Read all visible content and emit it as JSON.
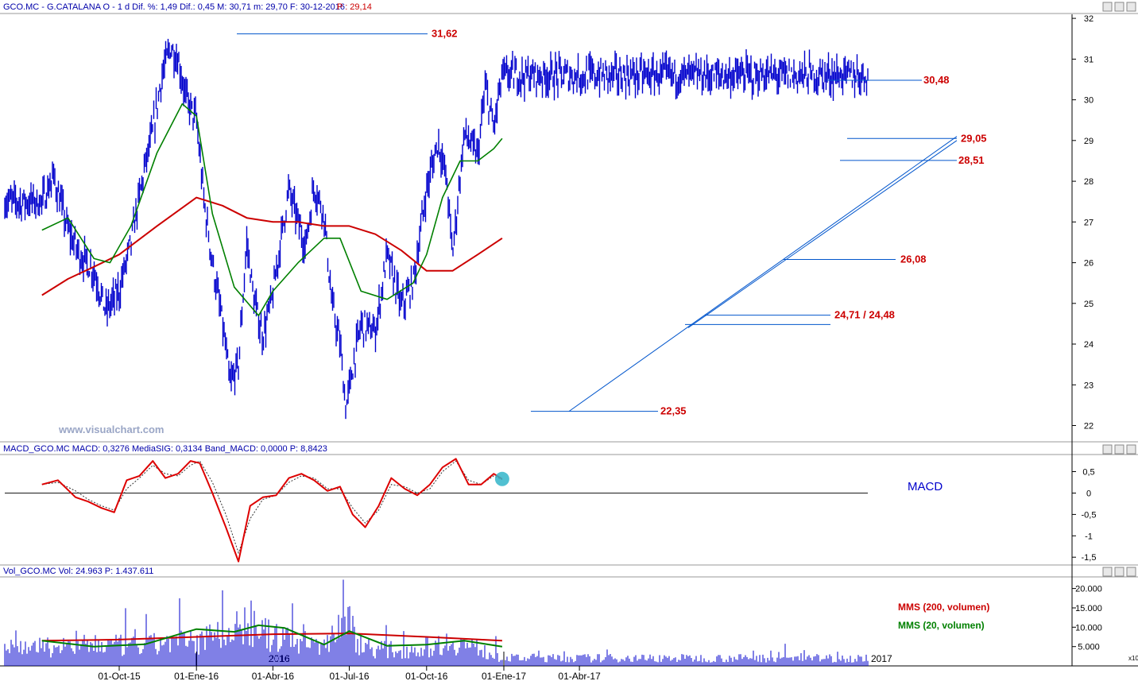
{
  "colors": {
    "price": "#0000cc",
    "sma200": "#cc0000",
    "sma20": "#008000",
    "annotation": "#cc0000",
    "trend_line": "#0055cc",
    "macd": "#dd0000",
    "volume": "#0000cc",
    "axis": "#000000"
  },
  "panels": {
    "price": {
      "header": "GCO.MC - G.CATALANA O - 1 d Dif. %: 1,49 Dif.: 0,45 M: 30,71 m: 29,70 F: 30-12-2016",
      "header_extra": "P : 29,14",
      "watermark": "www.visualchart.com"
    },
    "macd": {
      "header": "MACD_GCO.MC MACD: 0,3276 MediaSIG: 0,3134 Band_MACD: 0,0000 P: 8,8423",
      "label": "MACD"
    },
    "volume": {
      "header": "Vol_GCO.MC Vol: 24.963 P: 1.437.611",
      "legend_sma200": "MMS (200, volumen)",
      "legend_sma20": "MMS (20, volumen)",
      "scale_note": "x10",
      "year_markers": [
        "2016",
        "2017"
      ]
    }
  },
  "chart_data": [
    {
      "type": "ohlc",
      "panel": "price",
      "x_ticks": [
        "01-Oct-15",
        "01-Ene-16",
        "01-Abr-16",
        "01-Jul-16",
        "01-Oct-16",
        "01-Ene-17",
        "01-Abr-17"
      ],
      "y_ticks": [
        "22",
        "23",
        "24",
        "25",
        "26",
        "27",
        "28",
        "29",
        "30",
        "31",
        "32"
      ],
      "ylim": [
        21.6,
        32.1
      ],
      "series": [
        {
          "name": "Close",
          "x": [
            "2015-07-01",
            "2015-07-15",
            "2015-08-01",
            "2015-08-15",
            "2015-09-01",
            "2015-09-15",
            "2015-10-01",
            "2015-10-15",
            "2015-11-01",
            "2015-11-10",
            "2015-11-20",
            "2015-12-01",
            "2015-12-10",
            "2015-12-20",
            "2016-01-01",
            "2016-01-10",
            "2016-01-20",
            "2016-02-01",
            "2016-02-10",
            "2016-02-20",
            "2016-03-01",
            "2016-03-10",
            "2016-03-20",
            "2016-04-01",
            "2016-04-10",
            "2016-04-20",
            "2016-05-01",
            "2016-05-10",
            "2016-05-20",
            "2016-06-01",
            "2016-06-10",
            "2016-06-20",
            "2016-06-27",
            "2016-07-05",
            "2016-07-15",
            "2016-08-01",
            "2016-08-15",
            "2016-09-01",
            "2016-09-15",
            "2016-10-01",
            "2016-10-15",
            "2016-10-25",
            "2016-11-01",
            "2016-11-15",
            "2016-12-01",
            "2016-12-10",
            "2016-12-20",
            "2016-12-30"
          ],
          "values": [
            27.5,
            28.1,
            26.8,
            26.2,
            25.8,
            24.8,
            25.3,
            26.5,
            28.4,
            29.2,
            30.5,
            31.3,
            31.0,
            30.0,
            29.5,
            27.5,
            26.0,
            24.5,
            23.0,
            23.5,
            26.5,
            25.0,
            24.2,
            25.2,
            26.5,
            27.8,
            27.0,
            26.4,
            27.9,
            27.2,
            25.0,
            24.0,
            22.4,
            23.4,
            24.5,
            24.3,
            26.2,
            24.9,
            25.5,
            27.8,
            29.0,
            28.0,
            26.2,
            29.2,
            28.6,
            30.3,
            29.3,
            30.6
          ]
        },
        {
          "name": "SMA20",
          "x": [
            "2015-07-01",
            "2015-08-01",
            "2015-09-01",
            "2015-09-20",
            "2015-10-15",
            "2015-11-15",
            "2015-12-15",
            "2016-01-01",
            "2016-01-20",
            "2016-02-15",
            "2016-03-15",
            "2016-04-01",
            "2016-05-01",
            "2016-06-01",
            "2016-06-20",
            "2016-07-15",
            "2016-08-15",
            "2016-09-15",
            "2016-10-01",
            "2016-10-20",
            "2016-11-10",
            "2016-12-01",
            "2016-12-20",
            "2016-12-30"
          ],
          "values": [
            26.8,
            27.1,
            26.1,
            26.0,
            26.9,
            28.7,
            29.9,
            29.6,
            27.2,
            25.4,
            24.7,
            25.3,
            26.0,
            26.6,
            26.6,
            25.3,
            25.1,
            25.5,
            26.2,
            27.6,
            28.5,
            28.5,
            28.8,
            29.05
          ]
        },
        {
          "name": "SMA200",
          "x": [
            "2015-07-01",
            "2015-08-01",
            "2015-09-01",
            "2015-10-01",
            "2015-11-15",
            "2016-01-01",
            "2016-02-01",
            "2016-03-01",
            "2016-04-01",
            "2016-05-01",
            "2016-06-01",
            "2016-07-01",
            "2016-08-01",
            "2016-09-01",
            "2016-10-01",
            "2016-10-15",
            "2016-11-01",
            "2016-12-01",
            "2016-12-30"
          ],
          "values": [
            25.2,
            25.6,
            25.9,
            26.2,
            26.9,
            27.6,
            27.4,
            27.1,
            27.0,
            27.0,
            26.9,
            26.9,
            26.7,
            26.3,
            25.8,
            25.8,
            25.8,
            26.2,
            26.6
          ]
        }
      ],
      "annotations": [
        "31,62",
        "30,48",
        "29,05",
        "28,51",
        "26,08",
        "24,71 / 24,48",
        "22,35"
      ]
    },
    {
      "type": "line",
      "panel": "macd",
      "y_ticks": [
        "0,5",
        "0",
        "-0,5",
        "-1",
        "-1,5"
      ],
      "ylim": [
        -1.7,
        0.9
      ],
      "series": [
        {
          "name": "MACD",
          "x": [
            "2015-07-01",
            "2015-07-20",
            "2015-08-10",
            "2015-08-25",
            "2015-09-10",
            "2015-09-25",
            "2015-10-10",
            "2015-10-25",
            "2015-11-10",
            "2015-11-25",
            "2015-12-10",
            "2015-12-25",
            "2016-01-05",
            "2016-01-20",
            "2016-02-05",
            "2016-02-20",
            "2016-03-05",
            "2016-03-20",
            "2016-04-05",
            "2016-04-20",
            "2016-05-05",
            "2016-05-20",
            "2016-06-05",
            "2016-06-20",
            "2016-07-05",
            "2016-07-20",
            "2016-08-05",
            "2016-08-20",
            "2016-09-05",
            "2016-09-20",
            "2016-10-05",
            "2016-10-20",
            "2016-11-05",
            "2016-11-20",
            "2016-12-05",
            "2016-12-20",
            "2016-12-30"
          ],
          "values": [
            0.2,
            0.3,
            -0.1,
            -0.2,
            -0.35,
            -0.45,
            0.3,
            0.4,
            0.75,
            0.35,
            0.45,
            0.75,
            0.7,
            0.0,
            -0.8,
            -1.6,
            -0.3,
            -0.1,
            -0.05,
            0.35,
            0.45,
            0.3,
            0.05,
            0.15,
            -0.5,
            -0.8,
            -0.3,
            0.35,
            0.1,
            -0.05,
            0.2,
            0.6,
            0.8,
            0.2,
            0.2,
            0.45,
            0.3276
          ]
        },
        {
          "name": "MediaSIG",
          "x": [
            "2015-07-01",
            "2015-07-20",
            "2015-08-10",
            "2015-08-25",
            "2015-09-10",
            "2015-09-25",
            "2015-10-10",
            "2015-10-25",
            "2015-11-10",
            "2015-11-25",
            "2015-12-10",
            "2015-12-25",
            "2016-01-05",
            "2016-01-20",
            "2016-02-05",
            "2016-02-20",
            "2016-03-05",
            "2016-03-20",
            "2016-04-05",
            "2016-04-20",
            "2016-05-05",
            "2016-05-20",
            "2016-06-05",
            "2016-06-20",
            "2016-07-05",
            "2016-07-20",
            "2016-08-05",
            "2016-08-20",
            "2016-09-05",
            "2016-09-20",
            "2016-10-05",
            "2016-10-20",
            "2016-11-05",
            "2016-11-20",
            "2016-12-05",
            "2016-12-20",
            "2016-12-30"
          ],
          "values": [
            0.2,
            0.25,
            0.05,
            -0.15,
            -0.3,
            -0.4,
            0.1,
            0.35,
            0.65,
            0.45,
            0.4,
            0.65,
            0.75,
            0.25,
            -0.5,
            -1.4,
            -0.6,
            -0.15,
            -0.05,
            0.25,
            0.4,
            0.35,
            0.1,
            0.1,
            -0.35,
            -0.7,
            -0.4,
            0.2,
            0.15,
            0.0,
            0.1,
            0.5,
            0.75,
            0.3,
            0.2,
            0.4,
            0.3134
          ]
        }
      ]
    },
    {
      "type": "bar",
      "panel": "volume",
      "y_ticks": [
        "20.000",
        "15.000",
        "10.000",
        "5.000"
      ],
      "ylim": [
        0,
        23000
      ],
      "series": [
        {
          "name": "Volume",
          "x": [
            "2015-07-01",
            "2015-08-01",
            "2015-09-01",
            "2015-10-01",
            "2015-11-01",
            "2015-12-01",
            "2016-01-01",
            "2016-02-01",
            "2016-03-01",
            "2016-04-01",
            "2016-05-01",
            "2016-06-01",
            "2016-06-24",
            "2016-07-15",
            "2016-08-01",
            "2016-09-01",
            "2016-10-01",
            "2016-11-01",
            "2016-12-01",
            "2016-12-30"
          ],
          "values": [
            6000,
            5500,
            7000,
            6500,
            6200,
            8000,
            7500,
            11000,
            13000,
            9000,
            8000,
            6500,
            16000,
            7000,
            5500,
            5000,
            6000,
            8000,
            5500,
            2496
          ]
        },
        {
          "name": "MMS (200, volumen)",
          "x": [
            "2015-07-01",
            "2015-10-01",
            "2016-01-01",
            "2016-04-01",
            "2016-07-01",
            "2016-10-01",
            "2016-12-30"
          ],
          "values": [
            6500,
            6800,
            7500,
            8200,
            8400,
            7500,
            6500
          ]
        },
        {
          "name": "MMS (20, volumen)",
          "x": [
            "2015-07-01",
            "2015-09-01",
            "2015-11-01",
            "2016-01-01",
            "2016-02-15",
            "2016-03-15",
            "2016-04-15",
            "2016-06-01",
            "2016-07-01",
            "2016-08-15",
            "2016-10-01",
            "2016-11-15",
            "2016-12-30"
          ],
          "values": [
            6500,
            5000,
            5600,
            9500,
            8800,
            10500,
            9800,
            5500,
            9000,
            5200,
            5500,
            6500,
            5000
          ]
        }
      ]
    }
  ]
}
